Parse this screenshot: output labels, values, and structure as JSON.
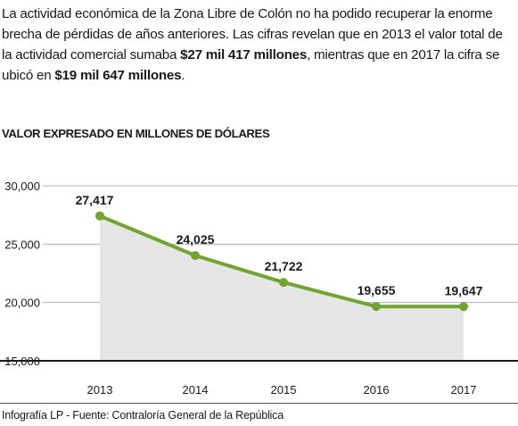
{
  "intro": {
    "part1": "La actividad económica de la Zona Libre de Colón no ha podido recuperar la enorme brecha de pérdidas de años anteriores. Las cifras revelan que en 2013 el valor total de la actividad comercial sumaba ",
    "highlight1": "$27 mil 417 millones",
    "part2": ", mientras que  en 2017 la cifra se ubicó en ",
    "highlight2": "$19 mil 647 millones",
    "part3": "."
  },
  "subtitle": "VALOR EXPRESADO EN MILLONES DE DÓLARES",
  "footer": "Infografía LP  - Fuente: Contraloría General de la República",
  "colors": {
    "line": "#72a333",
    "area": "#e6e6e6",
    "grid": "#b0b0b0",
    "axis": "#1a1a1a"
  },
  "chart_data": {
    "type": "area",
    "categories": [
      "2013",
      "2014",
      "2015",
      "2016",
      "2017"
    ],
    "series": [
      {
        "values": [
          27417,
          24025,
          21722,
          19655,
          19647
        ]
      }
    ],
    "data_labels": [
      "27,417",
      "24,025",
      "21,722",
      "19,655",
      "19,647"
    ],
    "y_ticks": [
      15000,
      20000,
      25000,
      30000
    ],
    "y_tick_labels": [
      "15,000",
      "20,000",
      "25,000",
      "30,000"
    ],
    "ylim": [
      15000,
      30000
    ],
    "grid": true,
    "legend": "none"
  }
}
